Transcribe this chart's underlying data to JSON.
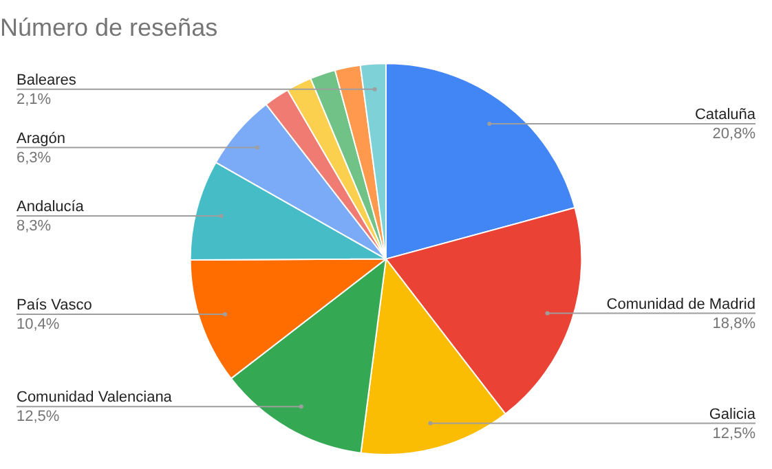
{
  "chart_data": {
    "type": "pie",
    "title": "Número de reseñas",
    "legend": false,
    "categories": [
      "Cataluña",
      "Comunidad de Madrid",
      "Galicia",
      "Comunidad Valenciana",
      "País Vasco",
      "Andalucía",
      "Aragón",
      null,
      null,
      null,
      null,
      "Baleares"
    ],
    "values": [
      20.8,
      18.8,
      12.5,
      12.5,
      10.4,
      8.3,
      6.3,
      2.1,
      2.1,
      2.1,
      2.1,
      2.1
    ],
    "value_labels": [
      "20,8%",
      "18,8%",
      "12,5%",
      "12,5%",
      "10,4%",
      "8,3%",
      "6,3%",
      null,
      null,
      null,
      null,
      "2,1%"
    ],
    "colors": [
      "#4285f4",
      "#ea4335",
      "#fbbc04",
      "#34a853",
      "#ff6d01",
      "#46bdc6",
      "#7baaf7",
      "#f07b72",
      "#fcd04f",
      "#71c287",
      "#ff994d",
      "#7ed1d7"
    ]
  }
}
